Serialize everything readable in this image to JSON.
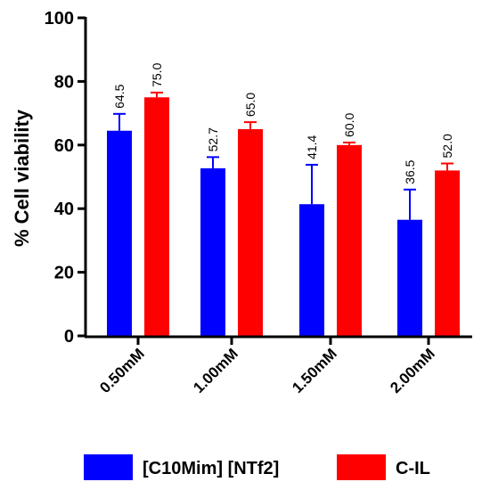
{
  "chart_data": {
    "type": "bar",
    "ylabel": "% Cell viability",
    "xlabel": "",
    "ylim": [
      0,
      100
    ],
    "yticks": [
      0,
      20,
      40,
      60,
      80,
      100
    ],
    "categories": [
      "0.50mM",
      "1.00mM",
      "1.50mM",
      "2.00mM"
    ],
    "series": [
      {
        "name": "[C10Mim] [NTf2]",
        "color": "#0000ff",
        "values": [
          64.5,
          52.7,
          41.4,
          36.5
        ],
        "value_labels": [
          "64.5",
          "52.7",
          "41.4",
          "36.5"
        ],
        "error_upper": [
          69.8,
          56.2,
          53.8,
          46.0
        ]
      },
      {
        "name": "C-IL",
        "color": "#ff0000",
        "values": [
          75.0,
          65.0,
          60.0,
          52.0
        ],
        "value_labels": [
          "75.0",
          "65.0",
          "60.0",
          "52.0"
        ],
        "error_upper": [
          76.5,
          67.2,
          60.8,
          54.2
        ]
      }
    ],
    "grid": false,
    "legend_position": "bottom"
  }
}
